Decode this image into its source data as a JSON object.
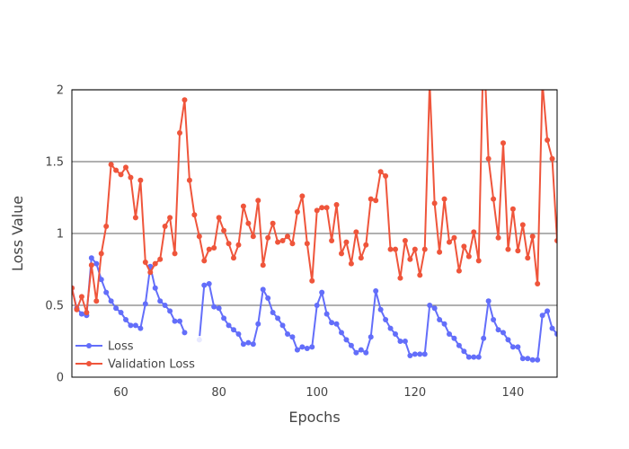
{
  "chart_data": {
    "type": "line",
    "title": "",
    "xlabel": "Epochs",
    "ylabel": "Loss Value",
    "xlim": [
      50,
      149
    ],
    "ylim": [
      0,
      2
    ],
    "x_ticks": [
      60,
      80,
      100,
      120,
      140
    ],
    "y_ticks": [
      0,
      0.5,
      1,
      1.5,
      2
    ],
    "y_tick_labels": [
      "0",
      "0.5",
      "1",
      "1.5",
      "2"
    ],
    "grid": "horizontal",
    "legend_position": "bottom-left",
    "series": [
      {
        "name": "Loss",
        "color": "#636efa",
        "x": [
          50,
          51,
          52,
          53,
          54,
          55,
          56,
          57,
          58,
          59,
          60,
          61,
          62,
          63,
          64,
          65,
          66,
          67,
          68,
          69,
          70,
          71,
          72,
          73,
          74,
          75,
          76,
          77,
          78,
          79,
          80,
          81,
          82,
          83,
          84,
          85,
          86,
          87,
          88,
          89,
          90,
          91,
          92,
          93,
          94,
          95,
          96,
          97,
          98,
          99,
          100,
          101,
          102,
          103,
          104,
          105,
          106,
          107,
          108,
          109,
          110,
          111,
          112,
          113,
          114,
          115,
          116,
          117,
          118,
          119,
          120,
          121,
          122,
          123,
          124,
          125,
          126,
          127,
          128,
          129,
          130,
          131,
          132,
          133,
          134,
          135,
          136,
          137,
          138,
          139,
          140,
          141,
          142,
          143,
          144,
          145,
          146,
          147,
          148,
          149
        ],
        "y": [
          0.62,
          0.48,
          0.44,
          0.43,
          0.83,
          0.79,
          0.68,
          0.59,
          0.53,
          0.48,
          0.45,
          0.4,
          0.36,
          0.36,
          0.34,
          0.51,
          0.77,
          0.62,
          0.53,
          0.5,
          0.46,
          0.39,
          0.39,
          0.31,
          null,
          null,
          0.26,
          0.64,
          0.65,
          0.49,
          0.48,
          0.41,
          0.36,
          0.33,
          0.3,
          0.23,
          0.24,
          0.23,
          0.37,
          0.61,
          0.55,
          0.45,
          0.41,
          0.36,
          0.3,
          0.28,
          0.19,
          0.21,
          0.2,
          0.21,
          0.5,
          0.59,
          0.44,
          0.38,
          0.37,
          0.31,
          0.26,
          0.22,
          0.17,
          0.19,
          0.17,
          0.28,
          0.6,
          0.47,
          0.4,
          0.34,
          0.3,
          0.25,
          0.25,
          0.15,
          0.16,
          0.16,
          0.16,
          0.5,
          0.48,
          0.4,
          0.37,
          0.3,
          0.27,
          0.22,
          0.18,
          0.14,
          0.14,
          0.14,
          0.27,
          0.53,
          0.4,
          0.33,
          0.31,
          0.26,
          0.21,
          0.21,
          0.13,
          0.13,
          0.12,
          0.12,
          0.43,
          0.46,
          0.34,
          0.3
        ]
      },
      {
        "name": "Validation Loss",
        "color": "#ef553b",
        "x": [
          50,
          51,
          52,
          53,
          54,
          55,
          56,
          57,
          58,
          59,
          60,
          61,
          62,
          63,
          64,
          65,
          66,
          67,
          68,
          69,
          70,
          71,
          72,
          73,
          74,
          75,
          76,
          77,
          78,
          79,
          80,
          81,
          82,
          83,
          84,
          85,
          86,
          87,
          88,
          89,
          90,
          91,
          92,
          93,
          94,
          95,
          96,
          97,
          98,
          99,
          100,
          101,
          102,
          103,
          104,
          105,
          106,
          107,
          108,
          109,
          110,
          111,
          112,
          113,
          114,
          115,
          116,
          117,
          118,
          119,
          120,
          121,
          122,
          123,
          124,
          125,
          126,
          127,
          128,
          129,
          130,
          131,
          132,
          133,
          134,
          135,
          136,
          137,
          138,
          139,
          140,
          141,
          142,
          143,
          144,
          145,
          146,
          147,
          148,
          149
        ],
        "y": [
          0.62,
          0.47,
          0.56,
          0.45,
          0.78,
          0.53,
          0.86,
          1.05,
          1.48,
          1.44,
          1.41,
          1.46,
          1.39,
          1.11,
          1.37,
          0.8,
          0.73,
          0.79,
          0.82,
          1.05,
          1.11,
          0.86,
          1.7,
          1.93,
          1.37,
          1.13,
          0.98,
          0.81,
          0.89,
          0.9,
          1.11,
          1.02,
          0.93,
          0.83,
          0.92,
          1.19,
          1.07,
          0.98,
          1.23,
          0.78,
          0.97,
          1.07,
          0.94,
          0.95,
          0.98,
          0.93,
          1.15,
          1.26,
          0.93,
          0.67,
          1.16,
          1.18,
          1.18,
          0.95,
          1.2,
          0.86,
          0.94,
          0.79,
          1.01,
          0.83,
          0.92,
          1.24,
          1.23,
          1.43,
          1.4,
          0.89,
          0.89,
          0.69,
          0.95,
          0.82,
          0.89,
          0.71,
          0.89,
          2.05,
          1.21,
          0.87,
          1.24,
          0.94,
          0.97,
          0.74,
          0.91,
          0.84,
          1.01,
          0.81,
          2.35,
          1.52,
          1.24,
          0.97,
          1.63,
          0.89,
          1.17,
          0.88,
          1.06,
          0.83,
          0.98,
          0.65,
          2.05,
          1.65,
          1.52,
          0.95
        ]
      }
    ]
  }
}
